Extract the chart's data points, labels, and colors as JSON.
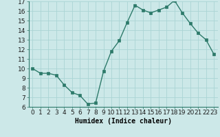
{
  "x": [
    0,
    1,
    2,
    3,
    4,
    5,
    6,
    7,
    8,
    9,
    10,
    11,
    12,
    13,
    14,
    15,
    16,
    17,
    18,
    19,
    20,
    21,
    22,
    23
  ],
  "y": [
    10.0,
    9.5,
    9.5,
    9.3,
    8.3,
    7.5,
    7.2,
    6.3,
    6.4,
    9.7,
    11.8,
    12.9,
    14.8,
    16.6,
    16.1,
    15.8,
    16.1,
    16.4,
    17.1,
    15.8,
    14.7,
    13.7,
    13.0,
    11.5
  ],
  "xlabel": "Humidex (Indice chaleur)",
  "xlim_min": -0.5,
  "xlim_max": 23.5,
  "ylim_min": 6,
  "ylim_max": 17,
  "yticks": [
    6,
    7,
    8,
    9,
    10,
    11,
    12,
    13,
    14,
    15,
    16,
    17
  ],
  "xticks": [
    0,
    1,
    2,
    3,
    4,
    5,
    6,
    7,
    8,
    9,
    10,
    11,
    12,
    13,
    14,
    15,
    16,
    17,
    18,
    19,
    20,
    21,
    22,
    23
  ],
  "xtick_labels": [
    "0",
    "1",
    "2",
    "3",
    "4",
    "5",
    "6",
    "7",
    "8",
    "9",
    "10",
    "11",
    "12",
    "13",
    "14",
    "15",
    "16",
    "17",
    "18",
    "19",
    "20",
    "21",
    "22",
    "23"
  ],
  "line_color": "#2d7a6a",
  "bg_color": "#cce8e8",
  "grid_color": "#aad4d4",
  "xlabel_fontsize": 7,
  "tick_fontsize": 6.5
}
